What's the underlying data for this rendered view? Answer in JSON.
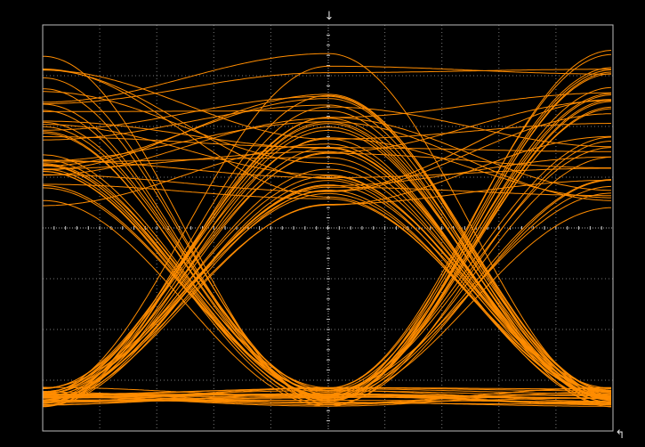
{
  "markers": {
    "trigger": "↓",
    "reference": "↰"
  }
}
